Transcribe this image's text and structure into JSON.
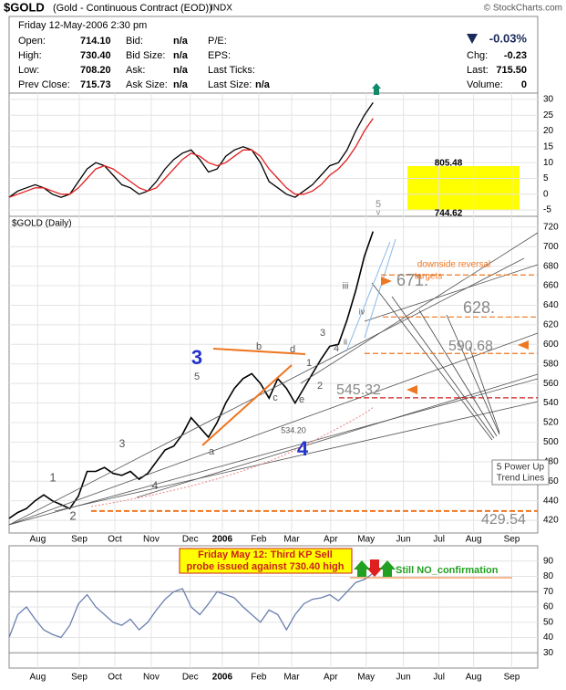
{
  "header": {
    "symbol": "$GOLD",
    "name": "(Gold - Continuous Contract (EOD))",
    "exchange": "INDX",
    "source": "© StockCharts.com",
    "date": "Friday  12-May-2006  2:30 pm",
    "quote": [
      [
        "Open:",
        "714.10",
        "Bid:",
        "n/a",
        "P/E:"
      ],
      [
        "High:",
        "730.40",
        "Bid Size:",
        "n/a",
        "EPS:"
      ],
      [
        "Low:",
        "708.20",
        "Ask:",
        "n/a",
        "Last Ticks:"
      ],
      [
        "Prev Close:",
        "715.73",
        "Ask Size:",
        "n/a",
        "Last Size:",
        "n/a"
      ]
    ],
    "change_pct": "-0.03%",
    "stats": [
      [
        "Chg:",
        "-0.23"
      ],
      [
        "Last:",
        "715.50"
      ],
      [
        "Volume:",
        "0"
      ]
    ]
  },
  "chart_data": [
    {
      "type": "line",
      "name": "MACD",
      "x": [
        0,
        1,
        2,
        3,
        4,
        5,
        6,
        7,
        8,
        9,
        10,
        11,
        12,
        13,
        14,
        15,
        16,
        17,
        18,
        19,
        20,
        21,
        22,
        23,
        24,
        25,
        26,
        27,
        28,
        29,
        30,
        31,
        32,
        33,
        34,
        35,
        36,
        37,
        38,
        39,
        40,
        41,
        42
      ],
      "series": [
        {
          "color": "#000000",
          "values": [
            -1,
            1,
            2,
            3,
            2,
            0,
            -1,
            0,
            4,
            8,
            10,
            9,
            6,
            3,
            2,
            0,
            1,
            4,
            8,
            11,
            13,
            14,
            11,
            7,
            8,
            12,
            14,
            15,
            14,
            10,
            4,
            2,
            0,
            -1,
            1,
            3,
            6,
            9,
            10,
            14,
            20,
            25,
            29
          ]
        },
        {
          "color": "#e02020",
          "values": [
            -1,
            0,
            1,
            2,
            2,
            1,
            0,
            0,
            2,
            5,
            8,
            9,
            8,
            6,
            4,
            2,
            1,
            2,
            5,
            8,
            11,
            13,
            12,
            10,
            9,
            10,
            12,
            14,
            14,
            12,
            8,
            5,
            2,
            0,
            0,
            1,
            3,
            6,
            8,
            11,
            15,
            20,
            24
          ]
        }
      ],
      "xlim": [
        0,
        61
      ],
      "ylim": [
        -7,
        32
      ],
      "yticks": [
        -5,
        0,
        5,
        10,
        15,
        20,
        25,
        30
      ],
      "annotations": [
        "805.48",
        "744.62",
        "5",
        "v"
      ]
    },
    {
      "type": "line",
      "title": "$GOLD (Daily)",
      "x": [
        0,
        1,
        2,
        3,
        4,
        5,
        6,
        7,
        8,
        9,
        10,
        11,
        12,
        13,
        14,
        15,
        16,
        17,
        18,
        19,
        20,
        21,
        22,
        23,
        24,
        25,
        26,
        27,
        28,
        29,
        30,
        31,
        32,
        33,
        34,
        35,
        36,
        37,
        38,
        39,
        40,
        41,
        42
      ],
      "series": [
        {
          "color": "#000000",
          "values": [
            422,
            428,
            432,
            440,
            446,
            440,
            436,
            432,
            445,
            470,
            470,
            474,
            468,
            466,
            470,
            462,
            468,
            480,
            492,
            496,
            508,
            525,
            515,
            505,
            520,
            540,
            555,
            565,
            570,
            560,
            545,
            565,
            555,
            540,
            555,
            570,
            585,
            598,
            600,
            625,
            655,
            690,
            715.5
          ]
        }
      ],
      "xlim": [
        0,
        61
      ],
      "ylim": [
        407,
        731
      ],
      "xticks": [
        {
          "value": 3.3,
          "label": "Aug"
        },
        {
          "value": 8.1,
          "label": "Sep"
        },
        {
          "value": 12.2,
          "label": "Oct"
        },
        {
          "value": 16.4,
          "label": "Nov"
        },
        {
          "value": 20.9,
          "label": "Dec"
        },
        {
          "value": 24.6,
          "label": "2006"
        },
        {
          "value": 28.8,
          "label": "Feb"
        },
        {
          "value": 32.6,
          "label": "Mar"
        },
        {
          "value": 37.1,
          "label": "Apr"
        },
        {
          "value": 41.2,
          "label": "May"
        },
        {
          "value": 45.5,
          "label": "Jun"
        },
        {
          "value": 49.6,
          "label": "Jul"
        },
        {
          "value": 53.6,
          "label": "Aug"
        },
        {
          "value": 58,
          "label": "Sep"
        }
      ],
      "yticks": [
        420,
        440,
        460,
        480,
        500,
        520,
        540,
        560,
        580,
        600,
        620,
        640,
        660,
        680,
        700,
        720
      ],
      "levels": [
        {
          "value": 671,
          "label": "671."
        },
        {
          "value": 628,
          "label": "628."
        },
        {
          "value": 590.68,
          "label": "590.68"
        },
        {
          "value": 545.32,
          "label": "545.32"
        },
        {
          "value": 429.54,
          "label": "429.54"
        }
      ],
      "annotations": [
        "downside reversal",
        "targets",
        "3",
        "5",
        "a",
        "b",
        "c",
        "d",
        "e",
        "4",
        "534.20",
        "1",
        "2",
        "3",
        "4",
        "iii",
        "iv",
        "ii",
        "1",
        "2",
        "3",
        "4",
        "5 Power Up",
        "Trend Lines"
      ]
    },
    {
      "type": "line",
      "name": "RSI",
      "x": [
        0,
        1,
        2,
        3,
        4,
        5,
        6,
        7,
        8,
        9,
        10,
        11,
        12,
        13,
        14,
        15,
        16,
        17,
        18,
        19,
        20,
        21,
        22,
        23,
        24,
        25,
        26,
        27,
        28,
        29,
        30,
        31,
        32,
        33,
        34,
        35,
        36,
        37,
        38,
        39,
        40,
        41,
        42
      ],
      "series": [
        {
          "color": "#6a7fb0",
          "values": [
            40,
            55,
            60,
            52,
            45,
            42,
            40,
            48,
            62,
            68,
            60,
            55,
            50,
            48,
            52,
            45,
            50,
            58,
            65,
            70,
            72,
            60,
            55,
            62,
            70,
            68,
            66,
            60,
            55,
            50,
            58,
            55,
            45,
            55,
            62,
            65,
            66,
            68,
            64,
            70,
            76,
            78,
            82
          ]
        }
      ],
      "xlim": [
        0,
        61
      ],
      "ylim": [
        20,
        100
      ],
      "xticks": [
        {
          "value": 3.3,
          "label": "Aug"
        },
        {
          "value": 8.1,
          "label": "Sep"
        },
        {
          "value": 12.2,
          "label": "Oct"
        },
        {
          "value": 16.4,
          "label": "Nov"
        },
        {
          "value": 20.9,
          "label": "Dec"
        },
        {
          "value": 24.6,
          "label": "2006"
        },
        {
          "value": 28.8,
          "label": "Feb"
        },
        {
          "value": 32.6,
          "label": "Mar"
        },
        {
          "value": 37.1,
          "label": "Apr"
        },
        {
          "value": 41.2,
          "label": "May"
        },
        {
          "value": 45.5,
          "label": "Jun"
        },
        {
          "value": 49.6,
          "label": "Jul"
        },
        {
          "value": 53.6,
          "label": "Aug"
        },
        {
          "value": 58,
          "label": "Sep"
        }
      ],
      "yticks": [
        30,
        40,
        50,
        60,
        70,
        80,
        90
      ],
      "annotations": [
        "Friday May 12: Third KP Sell",
        "probe issued against 730.40 high",
        "Still NO_confirmation"
      ]
    }
  ]
}
